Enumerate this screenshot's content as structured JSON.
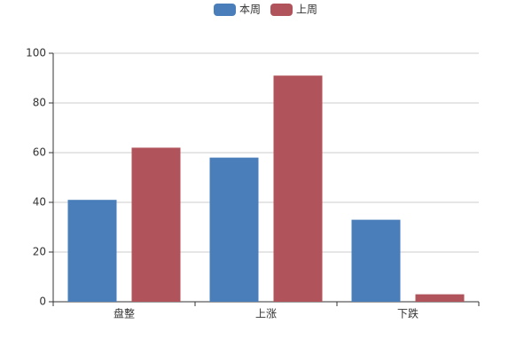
{
  "chart_data": {
    "type": "bar",
    "categories": [
      "盘整",
      "上涨",
      "下跌"
    ],
    "series": [
      {
        "name": "本周",
        "color": "#4a7ebb",
        "values": [
          41,
          58,
          33
        ]
      },
      {
        "name": "上周",
        "color": "#b0535a",
        "values": [
          62,
          91,
          3
        ]
      }
    ],
    "ylim": [
      0,
      100
    ],
    "yticks": [
      0,
      20,
      40,
      60,
      80,
      100
    ],
    "grid": true,
    "legend": "top"
  }
}
